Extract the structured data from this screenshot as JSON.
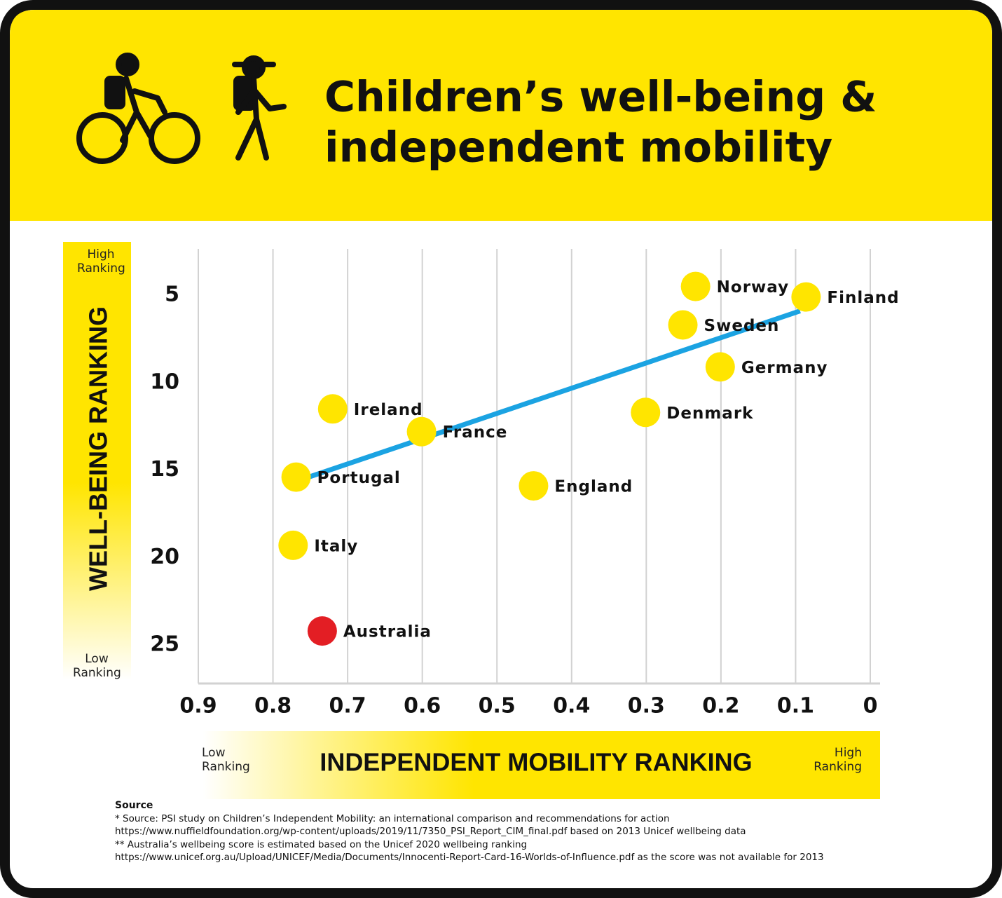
{
  "chart_data": {
    "type": "scatter",
    "title": [
      "Children’s well-being &",
      "independent mobility"
    ],
    "y_label": "WELL-BEING RANKING",
    "y_high": "High Ranking",
    "y_low": "Low Ranking",
    "x_label": "INDEPENDENT MOBILITY RANKING",
    "x_low": "Low Ranking",
    "x_high": "High Ranking",
    "labels": [
      "Norway",
      "Finland",
      "Sweden",
      "Germany",
      "Denmark",
      "Ireland",
      "France",
      "Portugal",
      "England",
      "Italy",
      "Australia"
    ],
    "x": [
      0.234,
      0.086,
      0.251,
      0.201,
      0.301,
      0.72,
      0.601,
      0.769,
      0.451,
      0.773,
      0.734
    ],
    "values": [
      4.5,
      5.1,
      6.7,
      9.1,
      11.7,
      11.5,
      12.8,
      15.4,
      15.9,
      19.3,
      24.2
    ],
    "colors": [
      "#ffe500",
      "#ffe500",
      "#ffe500",
      "#ffe500",
      "#ffe500",
      "#ffe500",
      "#ffe500",
      "#ffe500",
      "#ffe500",
      "#ffe500",
      "#e31e24"
    ],
    "trendline": {
      "x": [
        0.78,
        0.094
      ],
      "y": [
        15.8,
        5.9
      ],
      "color": "#1ba3e2"
    },
    "xlim": [
      0.9,
      0
    ],
    "xticks": [
      0.9,
      0.8,
      0.7,
      0.6,
      0.5,
      0.4,
      0.3,
      0.2,
      0.1,
      0
    ],
    "ylim": [
      2.35,
      27.2
    ],
    "yticks": [
      5,
      10,
      15,
      20,
      25
    ],
    "grid": true
  },
  "source": {
    "heading": "Source",
    "lines": [
      "* Source: PSI study on Children’s Independent Mobility: an international comparison and recommendations for action",
      "https://www.nuffieldfoundation.org/wp-content/uploads/2019/11/7350_PSI_Report_CIM_final.pdf based on 2013 Unicef wellbeing data",
      "** Australia’s wellbeing score is estimated based on the Unicef 2020 wellbeing ranking",
      "https://www.unicef.org.au/Upload/UNICEF/Media/Documents/Innocenti-Report-Card-16-Worlds-of-Influence.pdf as the score was not available for 2013"
    ]
  }
}
